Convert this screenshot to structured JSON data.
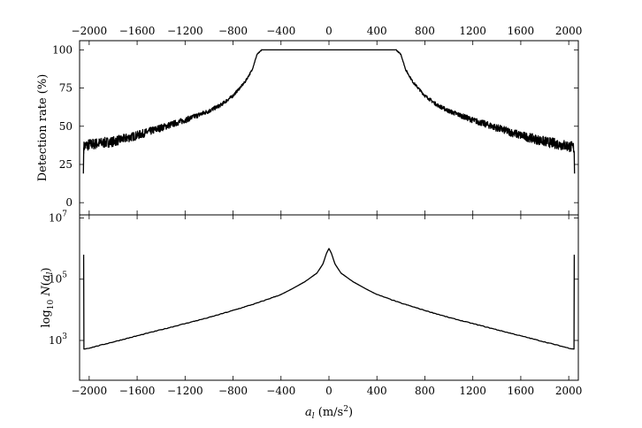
{
  "chart_data": [
    {
      "type": "line",
      "title": "",
      "xlabel": "",
      "ylabel": "Detection rate (%)",
      "xlim": [
        -2080,
        2080
      ],
      "ylim": [
        -8,
        106
      ],
      "x_ticks": [
        -2000,
        -1600,
        -1200,
        -800,
        -400,
        0,
        400,
        800,
        1200,
        1600,
        2000
      ],
      "x_tick_labels": [
        "−2000",
        "−1600",
        "−1200",
        "−800",
        "−400",
        "0",
        "400",
        "800",
        "1200",
        "1600",
        "2000"
      ],
      "y_ticks": [
        0,
        25,
        50,
        75,
        100
      ],
      "y_tick_labels": [
        "0",
        "25",
        "50",
        "75",
        "100"
      ],
      "tick_labels_on_top": true,
      "grid": false,
      "series": [
        {
          "x": [
            -2048,
            -2045,
            -2040,
            -2000,
            -1800,
            -1600,
            -1400,
            -1200,
            -1000,
            -900,
            -800,
            -700,
            -640,
            -600,
            -560,
            -500,
            -300,
            0,
            300,
            500,
            560,
            600,
            640,
            700,
            800,
            900,
            1000,
            1200,
            1400,
            1600,
            1800,
            2000,
            2040,
            2045,
            2048
          ],
          "y": [
            19,
            36,
            37,
            38,
            40,
            44,
            49,
            54,
            60,
            64,
            70,
            79,
            87,
            97,
            100,
            100,
            100,
            100,
            100,
            100,
            100,
            97,
            87,
            79,
            70,
            64,
            60,
            54,
            49,
            44,
            40,
            37,
            36,
            35,
            19
          ]
        }
      ]
    },
    {
      "type": "line",
      "title": "",
      "xlabel": "a_l (m/s²)",
      "ylabel": "log10 N(a_l)",
      "xlim": [
        -2080,
        2080
      ],
      "ylim": [
        1.7,
        7.1
      ],
      "log_scale": true,
      "x_ticks": [
        -2000,
        -1600,
        -1200,
        -800,
        -400,
        0,
        400,
        800,
        1200,
        1600,
        2000
      ],
      "x_tick_labels": [
        "−2000",
        "−1600",
        "−1200",
        "−800",
        "−400",
        "0",
        "400",
        "800",
        "1200",
        "1600",
        "2000"
      ],
      "y_ticks": [
        3,
        5,
        7
      ],
      "y_tick_labels": [
        "10",
        "10",
        "10"
      ],
      "y_tick_exponents": [
        "3",
        "5",
        "7"
      ],
      "grid": false,
      "series": [
        {
          "x": [
            -2046,
            -2044,
            -2040,
            -2000,
            -1800,
            -1600,
            -1400,
            -1200,
            -1000,
            -800,
            -600,
            -400,
            -300,
            -200,
            -100,
            -50,
            -20,
            0,
            20,
            50,
            100,
            200,
            300,
            400,
            600,
            800,
            1000,
            1200,
            1400,
            1600,
            1800,
            2000,
            2040,
            2044,
            2046
          ],
          "y": [
            5.8,
            2.72,
            2.72,
            2.75,
            2.95,
            3.15,
            3.35,
            3.55,
            3.75,
            3.98,
            4.22,
            4.5,
            4.7,
            4.92,
            5.2,
            5.5,
            5.85,
            6.0,
            5.85,
            5.5,
            5.2,
            4.92,
            4.7,
            4.5,
            4.22,
            3.98,
            3.75,
            3.55,
            3.35,
            3.15,
            2.95,
            2.75,
            2.72,
            2.72,
            5.8
          ]
        }
      ]
    }
  ]
}
